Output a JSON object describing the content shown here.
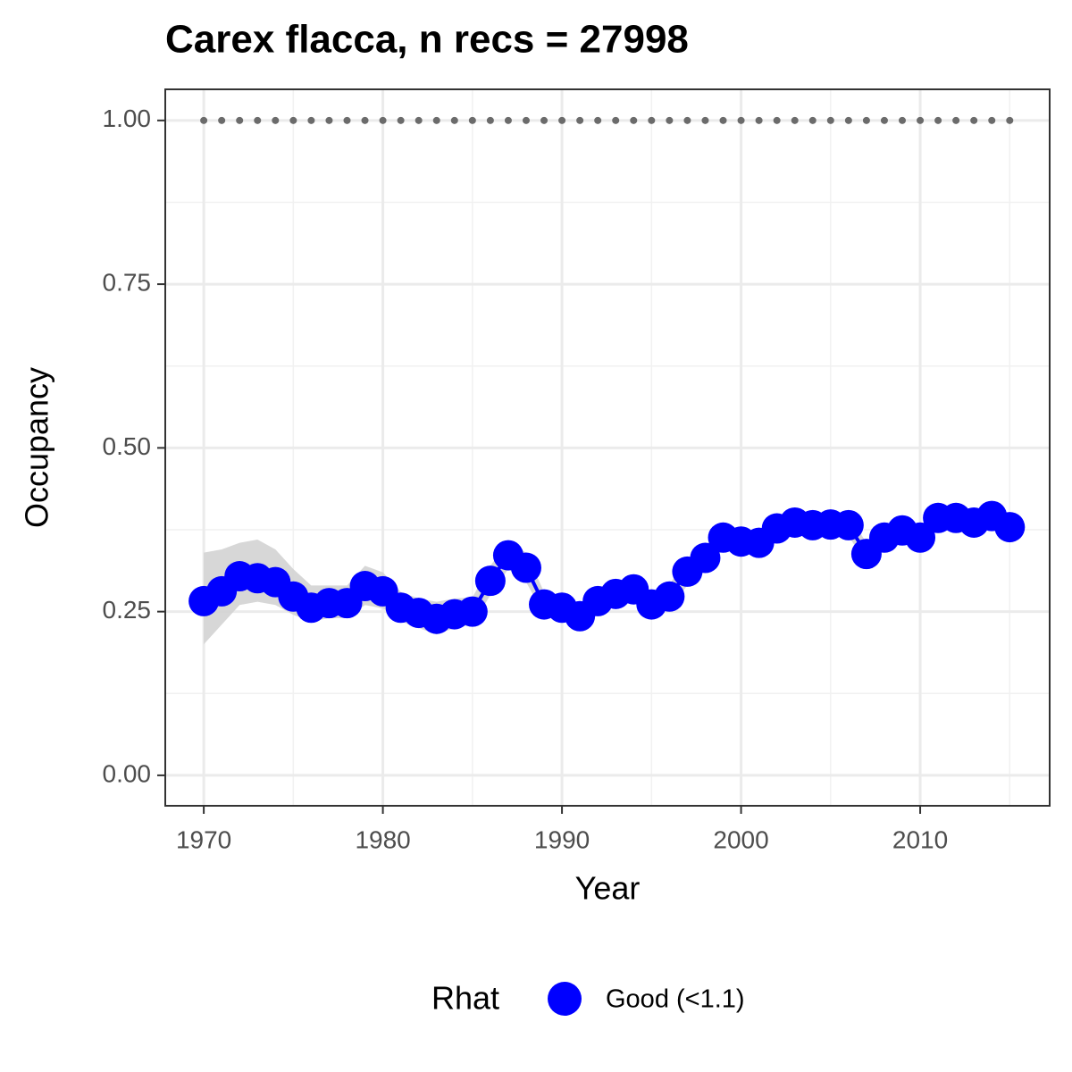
{
  "chart_data": {
    "type": "line",
    "title": "Carex flacca, n recs = 27998",
    "x_label": "Year",
    "y_label": "Occupancy",
    "legend_title": "Rhat",
    "legend_position": "bottom",
    "x": [
      1970,
      1971,
      1972,
      1973,
      1974,
      1975,
      1976,
      1977,
      1978,
      1979,
      1980,
      1981,
      1982,
      1983,
      1984,
      1985,
      1986,
      1987,
      1988,
      1989,
      1990,
      1991,
      1992,
      1993,
      1994,
      1995,
      1996,
      1997,
      1998,
      1999,
      2000,
      2001,
      2002,
      2003,
      2004,
      2005,
      2006,
      2007,
      2008,
      2009,
      2010,
      2011,
      2012,
      2013,
      2014,
      2015
    ],
    "series": [
      {
        "name": "Good (<1.1)",
        "color": "#0000ff",
        "values": [
          0.266,
          0.281,
          0.304,
          0.301,
          0.295,
          0.273,
          0.256,
          0.263,
          0.263,
          0.289,
          0.281,
          0.256,
          0.248,
          0.239,
          0.246,
          0.25,
          0.297,
          0.336,
          0.317,
          0.261,
          0.256,
          0.243,
          0.266,
          0.277,
          0.284,
          0.261,
          0.273,
          0.311,
          0.332,
          0.363,
          0.357,
          0.355,
          0.377,
          0.386,
          0.382,
          0.383,
          0.382,
          0.338,
          0.363,
          0.374,
          0.363,
          0.393,
          0.393,
          0.386,
          0.396,
          0.379
        ]
      }
    ],
    "ribbon_color": "#d3d3d3",
    "lower": [
      0.2,
      0.23,
      0.26,
      0.265,
      0.26,
      0.245,
      0.235,
      0.24,
      0.24,
      0.26,
      0.255,
      0.235,
      0.225,
      0.215,
      0.225,
      0.23,
      0.275,
      0.315,
      0.295,
      0.245,
      0.24,
      0.225,
      0.245,
      0.26,
      0.265,
      0.245,
      0.255,
      0.29,
      0.315,
      0.345,
      0.34,
      0.338,
      0.36,
      0.37,
      0.367,
      0.368,
      0.366,
      0.322,
      0.347,
      0.358,
      0.347,
      0.377,
      0.377,
      0.37,
      0.38,
      0.363
    ],
    "upper": [
      0.34,
      0.345,
      0.355,
      0.36,
      0.345,
      0.315,
      0.29,
      0.29,
      0.29,
      0.32,
      0.31,
      0.28,
      0.27,
      0.265,
      0.27,
      0.272,
      0.32,
      0.357,
      0.34,
      0.28,
      0.275,
      0.262,
      0.287,
      0.295,
      0.302,
      0.278,
      0.292,
      0.33,
      0.35,
      0.382,
      0.374,
      0.372,
      0.393,
      0.402,
      0.398,
      0.399,
      0.398,
      0.355,
      0.38,
      0.39,
      0.38,
      0.409,
      0.409,
      0.402,
      0.412,
      0.395
    ],
    "dotted_values": [
      1,
      1,
      1,
      1,
      1,
      1,
      1,
      1,
      1,
      1,
      1,
      1,
      1,
      1,
      1,
      1,
      1,
      1,
      1,
      1,
      1,
      1,
      1,
      1,
      1,
      1,
      1,
      1,
      1,
      1,
      1,
      1,
      1,
      1,
      1,
      1,
      1,
      1,
      1,
      1,
      1,
      1,
      1,
      1,
      1,
      1
    ],
    "dotted_color": "#6b6b6b",
    "xlim": [
      1967.85,
      2017.23
    ],
    "ylim": [
      -0.0465,
      1.0475
    ],
    "xticks": [
      1970,
      1980,
      1990,
      2000,
      2010
    ],
    "xminorticks": [
      1975,
      1985,
      1995,
      2005,
      2015
    ],
    "yticks": [
      {
        "value": 0,
        "label": "0.00"
      },
      {
        "value": 0.25,
        "label": "0.25"
      },
      {
        "value": 0.5,
        "label": "0.50"
      },
      {
        "value": 0.75,
        "label": "0.75"
      },
      {
        "value": 1,
        "label": "1.00"
      }
    ],
    "yminorticks": [
      0.125,
      0.375,
      0.625,
      0.875
    ],
    "grid": true
  }
}
